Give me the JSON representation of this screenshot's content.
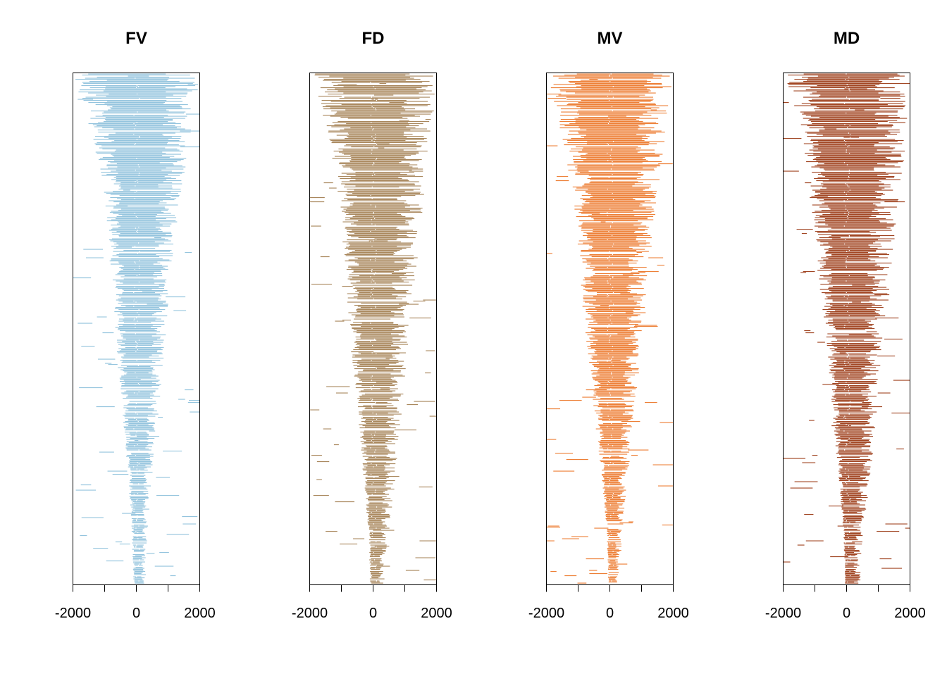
{
  "chart_data": [
    {
      "type": "bar",
      "orientation": "horizontal",
      "title": "FV",
      "color": "#94c4de",
      "xlim": [
        -2000,
        2000
      ],
      "xticks": [
        -2000,
        -1000,
        0,
        1000,
        2000
      ],
      "xtick_labels": [
        "-2000",
        "0",
        "2000"
      ],
      "xtick_label_values": [
        -2000,
        0,
        2000
      ],
      "grid": false,
      "legend": "none",
      "profile": {
        "row_fraction": [
          0,
          0.1,
          0.2,
          0.3,
          0.4,
          0.5,
          0.6,
          0.7,
          0.8,
          0.9,
          1.0
        ],
        "left_extent": [
          -2000,
          -1500,
          -1100,
          -950,
          -800,
          -700,
          -550,
          -400,
          -250,
          -150,
          -100
        ],
        "right_extent": [
          2000,
          1800,
          1500,
          1300,
          1100,
          950,
          800,
          650,
          500,
          350,
          300
        ]
      }
    },
    {
      "type": "bar",
      "orientation": "horizontal",
      "title": "FD",
      "color": "#a9875c",
      "xlim": [
        -2000,
        2000
      ],
      "xticks": [
        -2000,
        -1000,
        0,
        1000,
        2000
      ],
      "xtick_labels": [
        "-2000",
        "0",
        "2000"
      ],
      "xtick_label_values": [
        -2000,
        0,
        2000
      ],
      "grid": false,
      "legend": "none",
      "profile": {
        "row_fraction": [
          0,
          0.1,
          0.2,
          0.3,
          0.4,
          0.5,
          0.6,
          0.7,
          0.8,
          0.9,
          1.0
        ],
        "left_extent": [
          -2000,
          -1500,
          -1200,
          -1000,
          -900,
          -750,
          -600,
          -450,
          -300,
          -150,
          -100
        ],
        "right_extent": [
          2000,
          1900,
          1700,
          1500,
          1350,
          1150,
          1000,
          850,
          700,
          500,
          350
        ]
      }
    },
    {
      "type": "bar",
      "orientation": "horizontal",
      "title": "MV",
      "color": "#ed7f36",
      "xlim": [
        -2000,
        2000
      ],
      "xticks": [
        -2000,
        -1000,
        0,
        1000,
        2000
      ],
      "xtick_labels": [
        "-2000",
        "0",
        "2000"
      ],
      "xtick_label_values": [
        -2000,
        0,
        2000
      ],
      "grid": false,
      "legend": "none",
      "profile": {
        "row_fraction": [
          0,
          0.1,
          0.2,
          0.3,
          0.4,
          0.5,
          0.6,
          0.7,
          0.8,
          0.9,
          1.0
        ],
        "left_extent": [
          -2000,
          -1600,
          -1300,
          -1050,
          -950,
          -800,
          -600,
          -450,
          -250,
          -100,
          -50
        ],
        "right_extent": [
          2000,
          1800,
          1600,
          1400,
          1200,
          1050,
          900,
          750,
          550,
          400,
          300
        ]
      }
    },
    {
      "type": "bar",
      "orientation": "horizontal",
      "title": "MD",
      "color": "#a14522",
      "xlim": [
        -2000,
        2000
      ],
      "xticks": [
        -2000,
        -1000,
        0,
        1000,
        2000
      ],
      "xtick_labels": [
        "-2000",
        "0",
        "2000"
      ],
      "xtick_label_values": [
        -2000,
        0,
        2000
      ],
      "grid": false,
      "legend": "none",
      "profile": {
        "row_fraction": [
          0,
          0.1,
          0.2,
          0.3,
          0.4,
          0.5,
          0.6,
          0.7,
          0.8,
          0.9,
          1.0
        ],
        "left_extent": [
          -2000,
          -1550,
          -1250,
          -1050,
          -900,
          -700,
          -550,
          -400,
          -250,
          -100,
          -50
        ],
        "right_extent": [
          2000,
          1950,
          1750,
          1550,
          1400,
          1250,
          1050,
          900,
          750,
          550,
          450
        ]
      }
    }
  ]
}
